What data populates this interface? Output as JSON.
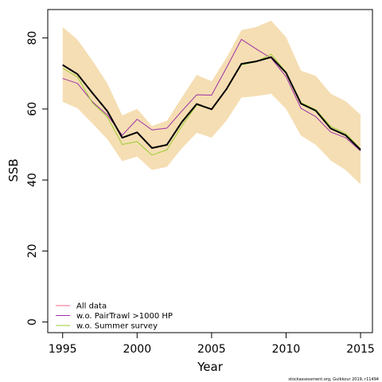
{
  "chart_data": {
    "type": "line",
    "xlabel": "Year",
    "ylabel": "SSB",
    "xlim": [
      1994,
      2015.8
    ],
    "ylim": [
      -3,
      88
    ],
    "x_ticks": [
      1995,
      2000,
      2005,
      2010,
      2015
    ],
    "y_ticks": [
      0,
      20,
      40,
      60,
      80
    ],
    "grid": false,
    "legend_position": "bottom-left",
    "x": [
      1995,
      1996,
      1997,
      1998,
      1999,
      2000,
      2001,
      2002,
      2003,
      2004,
      2005,
      2006,
      2007,
      2008,
      2009,
      2010,
      2011,
      2012,
      2013,
      2014,
      2015
    ],
    "confidence_band": {
      "color": "#f5deb3",
      "lower": [
        62.0,
        60.2,
        55.9,
        51.5,
        45.3,
        46.6,
        42.8,
        43.7,
        48.9,
        53.3,
        51.9,
        56.7,
        63.2,
        63.6,
        64.3,
        60.0,
        52.5,
        49.9,
        45.5,
        42.8,
        38.8
      ],
      "upper": [
        83.1,
        79.5,
        73.6,
        67.2,
        58.2,
        60.0,
        55.2,
        56.7,
        63.2,
        69.6,
        67.8,
        74.4,
        82.2,
        83.1,
        84.9,
        80.2,
        70.8,
        69.3,
        64.3,
        62.2,
        58.4
      ]
    },
    "series": [
      {
        "name": "",
        "color": "#000000",
        "width": 2,
        "values": [
          72.4,
          69.8,
          64.5,
          59.4,
          51.9,
          53.4,
          49.0,
          49.9,
          56.3,
          61.4,
          59.9,
          65.6,
          72.7,
          73.4,
          74.6,
          70.2,
          61.5,
          59.5,
          54.5,
          52.6,
          48.5
        ]
      },
      {
        "name": "All data",
        "color": "#ec6a88",
        "width": 1,
        "values": [
          72.5,
          69.9,
          64.6,
          59.4,
          51.9,
          53.4,
          49.0,
          49.9,
          56.3,
          61.4,
          59.9,
          65.6,
          72.7,
          73.4,
          74.6,
          70.2,
          61.5,
          59.5,
          54.5,
          52.6,
          48.5
        ]
      },
      {
        "name": "w.o. PairTrawl >1000 HP",
        "color": "#a030a8",
        "width": 1,
        "values": [
          68.6,
          67.2,
          62.0,
          58.3,
          52.6,
          57.1,
          54.1,
          54.6,
          59.4,
          64.0,
          63.9,
          71.6,
          79.6,
          76.9,
          74.3,
          69.1,
          60.2,
          57.8,
          53.5,
          51.9,
          48.2
        ]
      },
      {
        "name": "w.o. Summer survey",
        "color": "#9acd32",
        "width": 1,
        "values": [
          71.5,
          69.0,
          61.7,
          57.8,
          50.0,
          50.8,
          47.0,
          48.5,
          55.2,
          61.1,
          59.9,
          65.6,
          72.4,
          73.3,
          75.4,
          70.4,
          61.8,
          59.8,
          55.1,
          53.1,
          48.8
        ]
      }
    ],
    "footnote": "stockassessment.org, Gulkkour 2019, r11494"
  }
}
